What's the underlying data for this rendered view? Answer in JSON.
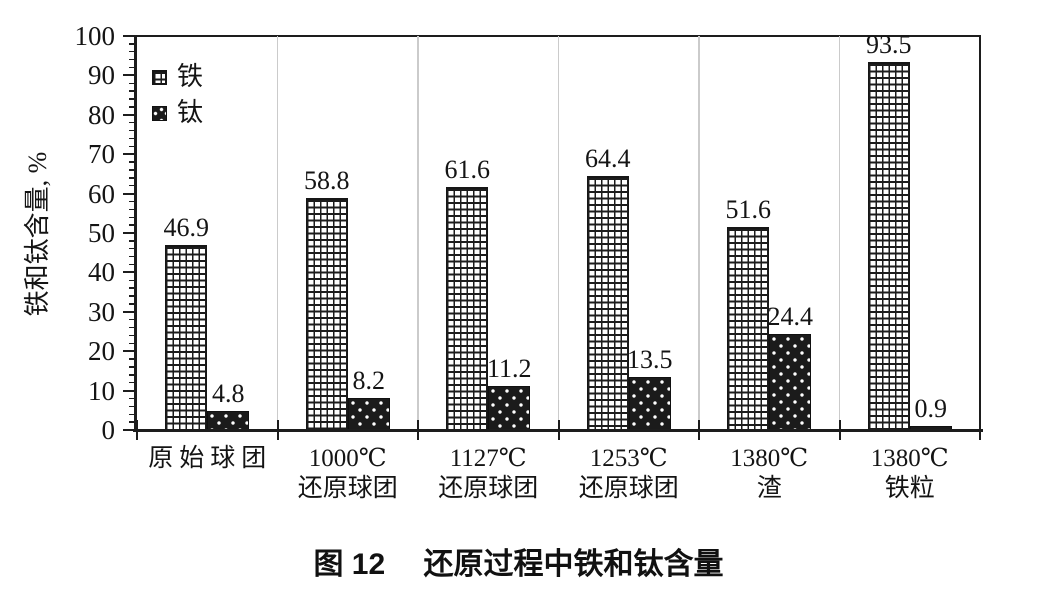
{
  "figure": {
    "caption": "图 12　 还原过程中铁和钛含量"
  },
  "chart_data": {
    "type": "bar",
    "title": "图 12　 还原过程中铁和钛含量",
    "xlabel": "",
    "ylabel": "铁和钛含量, %",
    "ylim": [
      0,
      100
    ],
    "ytick_step": 10,
    "y_minor_step": 2,
    "ytick_labels": [
      "0",
      "10",
      "20",
      "30",
      "40",
      "50",
      "60",
      "70",
      "80",
      "90",
      "100"
    ],
    "grid": "vertical separators between categories",
    "legend_position": "top-left inside plot",
    "categories": [
      [
        "原始球团"
      ],
      [
        "1000℃",
        "还原球团"
      ],
      [
        "1127℃",
        "还原球团"
      ],
      [
        "1253℃",
        "还原球团"
      ],
      [
        "1380℃",
        "渣"
      ],
      [
        "1380℃",
        "铁粒"
      ]
    ],
    "series": [
      {
        "name": "铁",
        "pattern": "white-crosshatch-grid",
        "values": [
          46.9,
          58.8,
          61.6,
          64.4,
          51.6,
          93.5
        ]
      },
      {
        "name": "钛",
        "pattern": "black-with-white-dots",
        "values": [
          4.8,
          8.2,
          11.2,
          13.5,
          24.4,
          0.9
        ]
      }
    ],
    "colors": {
      "ink": "#1d1d1d",
      "gridline": "#cbcbcb",
      "background": "#ffffff"
    }
  }
}
